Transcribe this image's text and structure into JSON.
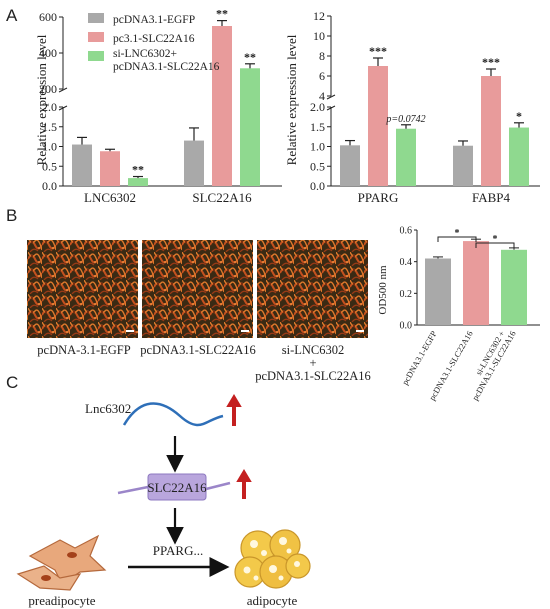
{
  "panels": {
    "a": "A",
    "b": "B",
    "c": "C"
  },
  "colors": {
    "egfp": "#a9a9a9",
    "slc": "#e89b9b",
    "si": "#8fd98f"
  },
  "legend": [
    "pcDNA3.1-EGFP",
    "pc3.1-SLC22A16",
    "si-LNC6302+",
    "pcDNA3.1-SLC22A16"
  ],
  "chart_data": [
    {
      "type": "bar",
      "panel": "A",
      "ylabel": "Relative expression level",
      "broken_axis": true,
      "lower_ylim": [
        0.0,
        2.0
      ],
      "upper_ylim": [
        200,
        600
      ],
      "lower_ticks": [
        "0.0",
        "0.5",
        "1.0",
        "1.5",
        "2.0"
      ],
      "upper_ticks": [
        "200",
        "400",
        "600"
      ],
      "categories": [
        "LNC6302",
        "SLC22A16"
      ],
      "series": [
        {
          "name": "pcDNA3.1-EGFP",
          "values": [
            1.05,
            1.15
          ],
          "errors": [
            0.18,
            0.32
          ],
          "sig": [
            "",
            ""
          ]
        },
        {
          "name": "pc3.1-SLC22A16",
          "values": [
            0.88,
            550
          ],
          "errors": [
            0.05,
            30
          ],
          "sig": [
            "",
            "**"
          ]
        },
        {
          "name": "si-LNC6302+ pcDNA3.1-SLC22A16",
          "values": [
            0.2,
            315
          ],
          "errors": [
            0.04,
            25
          ],
          "sig": [
            "**",
            "**"
          ]
        }
      ]
    },
    {
      "type": "bar",
      "panel": "A",
      "ylabel": "Relative expression level",
      "broken_axis": true,
      "lower_ylim": [
        0.0,
        2.0
      ],
      "upper_ylim": [
        4,
        12
      ],
      "lower_ticks": [
        "0.0",
        "0.5",
        "1.0",
        "1.5",
        "2.0"
      ],
      "upper_ticks": [
        "4",
        "6",
        "8",
        "10",
        "12"
      ],
      "categories": [
        "PPARG",
        "FABP4"
      ],
      "series": [
        {
          "name": "pcDNA3.1-EGFP",
          "values": [
            1.03,
            1.02
          ],
          "errors": [
            0.12,
            0.12
          ],
          "sig": [
            "",
            ""
          ]
        },
        {
          "name": "pc3.1-SLC22A16",
          "values": [
            7.0,
            6.0
          ],
          "errors": [
            0.8,
            0.7
          ],
          "sig": [
            "***",
            "***"
          ]
        },
        {
          "name": "si-LNC6302+ pcDNA3.1-SLC22A16",
          "values": [
            1.45,
            1.48
          ],
          "errors": [
            0.1,
            0.12
          ],
          "sig": [
            "p=0.0742",
            "*"
          ]
        }
      ]
    },
    {
      "type": "bar",
      "panel": "B",
      "ylabel": "OD500 nm",
      "ylim": [
        0.0,
        0.6
      ],
      "ticks": [
        "0.0",
        "0.2",
        "0.4",
        "0.6"
      ],
      "categories": [
        "pcDNA3.1-EGFP",
        "pcDNA3.1-SLC22A16",
        "si-LNC6302 + pcDNA3.1-SLC22A16"
      ],
      "values": [
        0.42,
        0.53,
        0.475
      ],
      "errors": [
        0.01,
        0.012,
        0.012
      ],
      "brackets": [
        {
          "from": 0,
          "to": 1,
          "label": "*"
        },
        {
          "from": 1,
          "to": 2,
          "label": "*"
        }
      ]
    }
  ],
  "images": {
    "labels": [
      "pcDNA-3.1-EGFP",
      "pcDNA3.1-SLC22A16",
      "si-LNC6302",
      "+",
      "pcDNA3.1-SLC22A16"
    ]
  },
  "b_xlabels": [
    "pcDNA3.1-EGFP",
    "pcDNA3.1-SLC22A16",
    "si-LNC6302 +",
    "pcDNA3.1-SLC22A16"
  ],
  "flow": {
    "lnc": "Lnc6302",
    "slc": "SLC22A16",
    "pparg": "PPARG...",
    "pre": "preadipocyte",
    "adi": "adipocyte"
  }
}
